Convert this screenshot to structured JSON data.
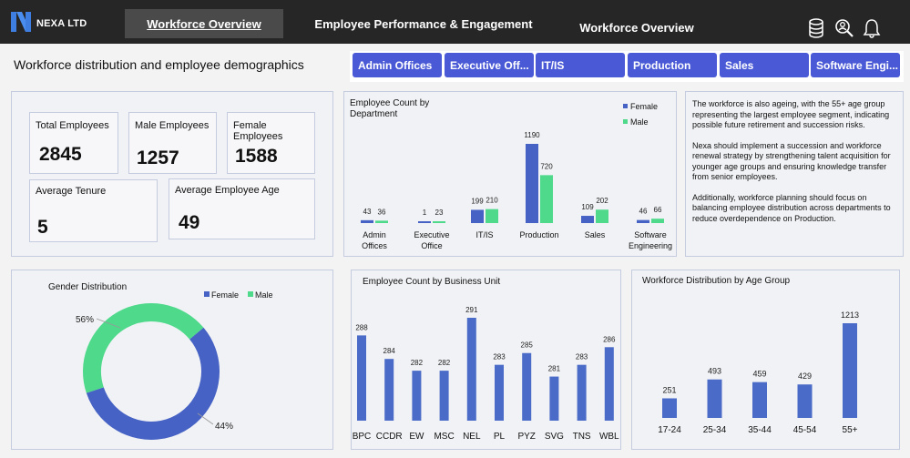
{
  "header": {
    "brand": "NEXA LTD",
    "tabs": [
      {
        "label": "Workforce Overview",
        "active": true
      },
      {
        "label": "Employee Performance & Engagement",
        "active": false
      },
      {
        "label": "Workforce Overview",
        "active": false
      }
    ],
    "icons": [
      "database-icon",
      "search-person-icon",
      "bell-icon"
    ]
  },
  "subtitle": "Workforce distribution and employee demographics",
  "slicer": {
    "items": [
      "Admin Offices",
      "Executive Off...",
      "IT/IS",
      "Production",
      "Sales",
      "Software Engi..."
    ],
    "color": "#4a5ad6"
  },
  "kpis": {
    "total_employees": {
      "label": "Total Employees",
      "value": "2845"
    },
    "male_employees": {
      "label": "Male Employees",
      "value": "1257"
    },
    "female_employees": {
      "label": "Female Employees",
      "value": "1588"
    },
    "average_tenure": {
      "label": "Average Tenure",
      "value": "5"
    },
    "average_age": {
      "label": "Average Employee Age",
      "value": "49"
    }
  },
  "notes": [
    "The workforce is also ageing, with the 55+ age group representing the largest employee segment, indicating possible future retirement and succession risks.",
    "Nexa should implement a succession and workforce renewal strategy by strengthening talent acquisition for younger age groups and ensuring knowledge transfer from senior employees.",
    "Additionally, workforce planning should focus on balancing employee distribution across departments to reduce overdependence on Production."
  ],
  "colors": {
    "female": "#4562c4",
    "male": "#4ed98b",
    "bar": "#4a6cc8"
  },
  "chart_data": [
    {
      "type": "bar",
      "title": "Employee Count by Department",
      "categories": [
        "Admin Offices",
        "Executive Office",
        "IT/IS",
        "Production",
        "Sales",
        "Software Engineering"
      ],
      "series": [
        {
          "name": "Female",
          "values": [
            43,
            1,
            199,
            1190,
            109,
            46
          ]
        },
        {
          "name": "Male",
          "values": [
            36,
            23,
            210,
            720,
            202,
            66
          ]
        }
      ],
      "legend": "top-right"
    },
    {
      "type": "pie",
      "title": "Gender Distribution",
      "categories": [
        "Female",
        "Male"
      ],
      "values": [
        56,
        44
      ],
      "labels": [
        "56%",
        "44%"
      ],
      "legend": "top"
    },
    {
      "type": "bar",
      "title": "Employee Count by Business Unit",
      "categories": [
        "BPC",
        "CCDR",
        "EW",
        "MSC",
        "NEL",
        "PL",
        "PYZ",
        "SVG",
        "TNS",
        "WBL"
      ],
      "values": [
        288,
        284,
        282,
        282,
        291,
        283,
        285,
        281,
        283,
        286
      ]
    },
    {
      "type": "bar",
      "title": "Workforce Distribution by Age Group",
      "categories": [
        "17-24",
        "25-34",
        "35-44",
        "45-54",
        "55+"
      ],
      "values": [
        251,
        493,
        459,
        429,
        1213
      ]
    }
  ]
}
